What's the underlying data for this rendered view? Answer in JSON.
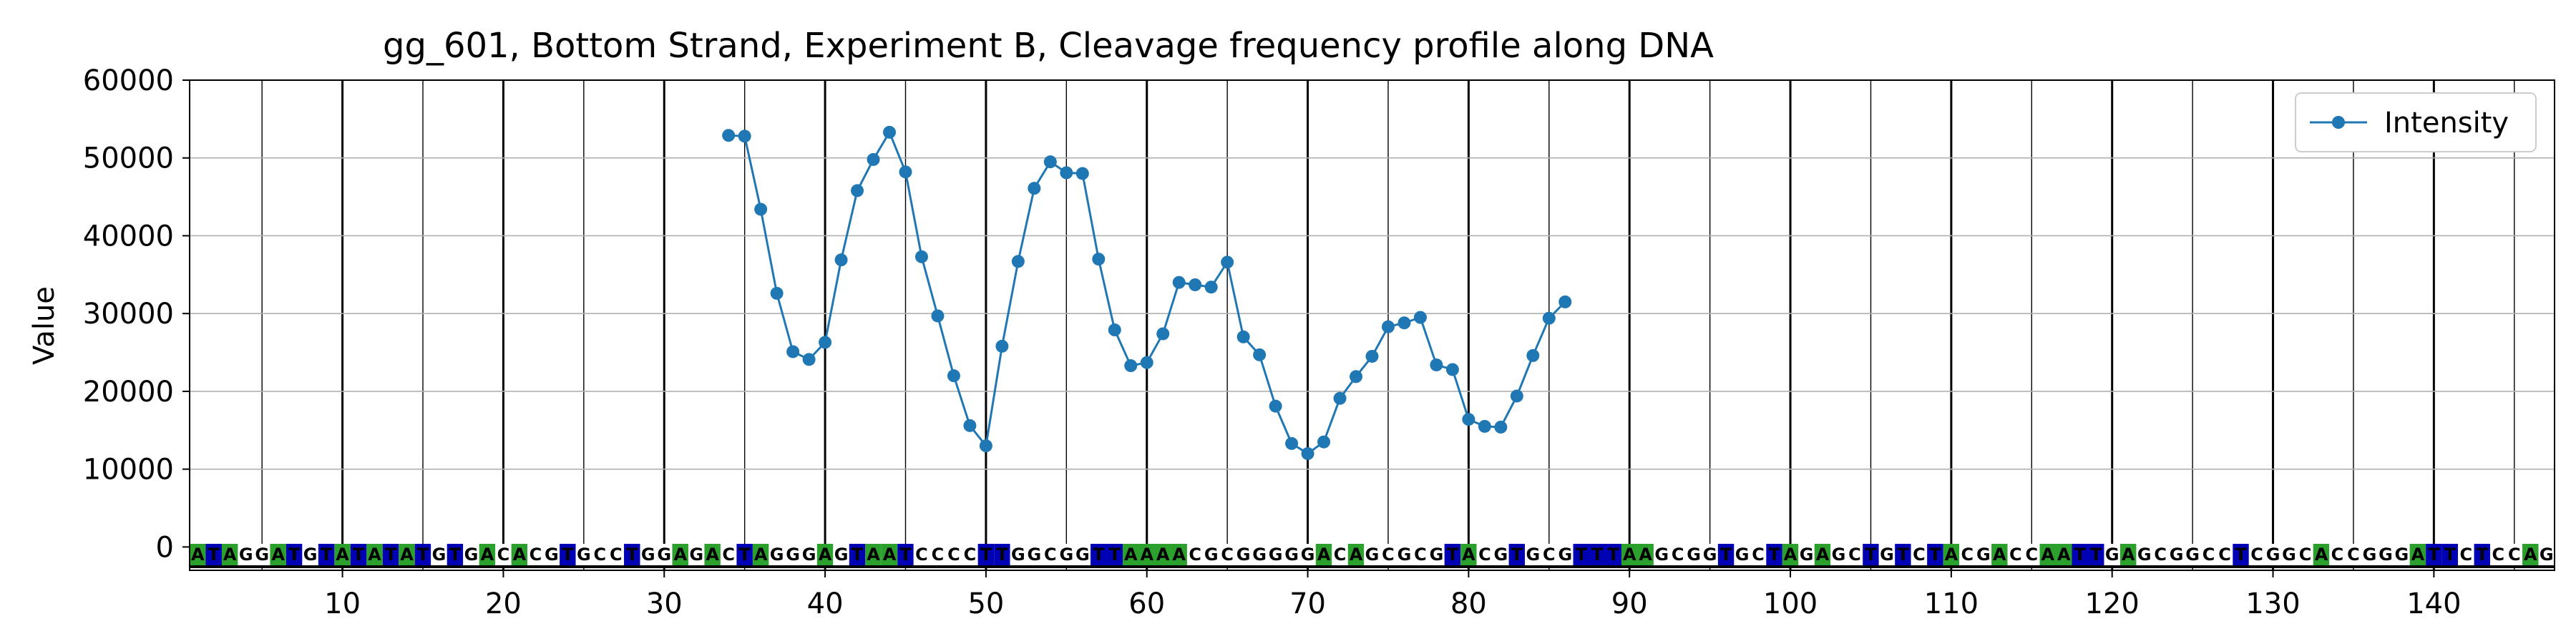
{
  "chart_data": {
    "type": "line",
    "title": "gg_601, Bottom Strand, Experiment B, Cleavage frequency profile along DNA",
    "xlabel": "",
    "ylabel": "Value",
    "xlim": [
      0.5,
      147.5
    ],
    "ylim": [
      -3000,
      60000
    ],
    "grid": true,
    "legend_position": "top-right",
    "y_ticks": [
      0,
      10000,
      20000,
      30000,
      40000,
      50000,
      60000
    ],
    "x_ticks": [
      10,
      20,
      30,
      40,
      50,
      60,
      70,
      80,
      90,
      100,
      110,
      120,
      130,
      140
    ],
    "sequence": "ATAGGATGTATATATGTGACACGTGCCTGGAGACTAGGGAGTAATCCCCTTGGCGGTTAAAACGCGGGGGACAGCGCGTACGTGCGTTTAAGCGGTGCTAGAGCTGTCTACGACCAATTGAGCGGCCTCGGCACCGGGATTCTCCAG",
    "base_colors": {
      "A": "#2ca02c",
      "T": "#0000b4",
      "G": "#ffffff",
      "C": "#ffffff"
    },
    "series": [
      {
        "name": "Intensity",
        "color": "#1f77b4",
        "x": [
          34,
          35,
          36,
          37,
          38,
          39,
          40,
          41,
          42,
          43,
          44,
          45,
          46,
          47,
          48,
          49,
          50,
          51,
          52,
          53,
          54,
          55,
          56,
          57,
          58,
          59,
          60,
          61,
          62,
          63,
          64,
          65,
          66,
          67,
          68,
          69,
          70,
          71,
          72,
          73,
          74,
          75,
          76,
          77,
          78,
          79,
          80,
          81,
          82,
          83,
          84,
          85,
          86
        ],
        "values": [
          52900,
          52800,
          43400,
          32600,
          25100,
          24100,
          26300,
          36900,
          45800,
          49800,
          53300,
          48200,
          37300,
          29700,
          22000,
          15600,
          13000,
          25800,
          36700,
          46100,
          49500,
          48100,
          48000,
          37000,
          27900,
          23300,
          23700,
          27400,
          34000,
          33700,
          33400,
          36600,
          27000,
          24700,
          18100,
          13300,
          12000,
          13500,
          19100,
          21900,
          24500,
          28300,
          28800,
          29500,
          23400,
          22800,
          16400,
          15500,
          15400,
          19400,
          24600,
          29400,
          31500
        ]
      }
    ]
  }
}
